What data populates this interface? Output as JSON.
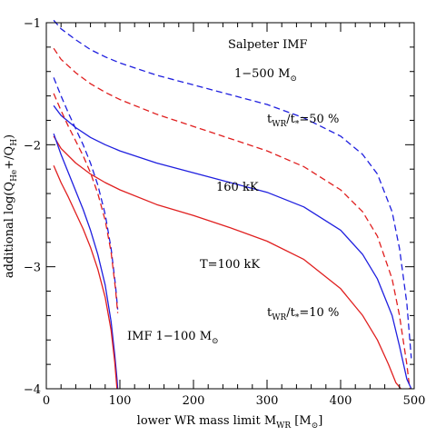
{
  "chart_data": {
    "type": "line",
    "xlabel": {
      "text": "lower WR mass limit M",
      "sub": "WR",
      "tail": " [M",
      "sym": "⊙",
      "close": "]"
    },
    "ylabel": {
      "a": "additional log(Q",
      "sub1": "He",
      "mid": "+/Q",
      "sub2": "H",
      "end": ")"
    },
    "xlim": [
      0,
      500
    ],
    "ylim": [
      -4,
      -1
    ],
    "xticks": [
      0,
      100,
      200,
      300,
      400,
      500
    ],
    "xtick_labels": [
      "0",
      "100",
      "200",
      "300",
      "400",
      "500"
    ],
    "yticks": [
      -4,
      -3,
      -2,
      -1
    ],
    "ytick_labels": [
      "−4",
      "−3",
      "−2",
      "−1"
    ],
    "colors": {
      "blue": "#1f1fdf",
      "red": "#e01f1f"
    },
    "annotations": {
      "salpeter": "Salpeter IMF",
      "range_prefix": "1−500 M",
      "frac50_t": "t",
      "frac50_sub1": "WR",
      "frac50_mid": "/t",
      "frac50_sub2": "*",
      "frac50_end": "=50 %",
      "frac10_end": "=10 %",
      "t160": "160 kK",
      "t100": "T=100 kK",
      "imf_small_prefix": "IMF 1−100 M",
      "sun": "⊙"
    },
    "series": [
      {
        "color": "blue",
        "dash": true,
        "x": [
          10,
          20,
          40,
          60,
          80,
          100,
          150,
          200,
          250,
          300,
          350,
          400,
          430,
          450,
          470,
          480,
          490,
          496
        ],
        "y": [
          -0.98,
          -1.05,
          -1.14,
          -1.22,
          -1.28,
          -1.33,
          -1.43,
          -1.51,
          -1.59,
          -1.67,
          -1.78,
          -1.93,
          -2.08,
          -2.24,
          -2.55,
          -2.85,
          -3.3,
          -3.75
        ]
      },
      {
        "color": "red",
        "dash": true,
        "x": [
          10,
          20,
          40,
          60,
          80,
          100,
          150,
          200,
          250,
          300,
          350,
          400,
          430,
          450,
          470,
          480,
          490,
          494
        ],
        "y": [
          -1.21,
          -1.3,
          -1.41,
          -1.5,
          -1.57,
          -1.63,
          -1.75,
          -1.85,
          -1.95,
          -2.05,
          -2.18,
          -2.37,
          -2.55,
          -2.75,
          -3.1,
          -3.4,
          -3.8,
          -4.0
        ]
      },
      {
        "color": "blue",
        "dash": false,
        "x": [
          10,
          20,
          40,
          60,
          80,
          100,
          150,
          200,
          250,
          300,
          350,
          400,
          430,
          450,
          470,
          480,
          490,
          496
        ],
        "y": [
          -1.68,
          -1.76,
          -1.86,
          -1.94,
          -2.0,
          -2.05,
          -2.15,
          -2.23,
          -2.31,
          -2.39,
          -2.51,
          -2.7,
          -2.9,
          -3.1,
          -3.4,
          -3.65,
          -3.92,
          -4.0
        ]
      },
      {
        "color": "red",
        "dash": false,
        "x": [
          10,
          20,
          40,
          60,
          80,
          100,
          150,
          200,
          250,
          300,
          350,
          400,
          430,
          450,
          465,
          475,
          482
        ],
        "y": [
          -1.93,
          -2.03,
          -2.15,
          -2.24,
          -2.31,
          -2.37,
          -2.49,
          -2.58,
          -2.68,
          -2.79,
          -2.94,
          -3.18,
          -3.4,
          -3.6,
          -3.8,
          -3.95,
          -4.0
        ]
      },
      {
        "color": "blue",
        "dash": true,
        "x": [
          10,
          20,
          30,
          40,
          50,
          60,
          70,
          80,
          88,
          94,
          97
        ],
        "y": [
          -1.45,
          -1.6,
          -1.74,
          -1.87,
          -2.0,
          -2.15,
          -2.33,
          -2.57,
          -2.85,
          -3.15,
          -3.35
        ]
      },
      {
        "color": "red",
        "dash": true,
        "x": [
          10,
          20,
          30,
          40,
          50,
          60,
          70,
          80,
          88,
          94,
          97
        ],
        "y": [
          -1.58,
          -1.72,
          -1.85,
          -1.97,
          -2.09,
          -2.23,
          -2.4,
          -2.62,
          -2.88,
          -3.18,
          -3.38
        ]
      },
      {
        "color": "blue",
        "dash": false,
        "x": [
          10,
          20,
          30,
          40,
          50,
          60,
          70,
          80,
          88,
          93,
          96,
          97
        ],
        "y": [
          -1.91,
          -2.08,
          -2.23,
          -2.38,
          -2.53,
          -2.7,
          -2.9,
          -3.15,
          -3.45,
          -3.72,
          -3.92,
          -4.0
        ]
      },
      {
        "color": "red",
        "dash": false,
        "x": [
          10,
          20,
          30,
          40,
          50,
          60,
          70,
          80,
          88,
          93,
          95,
          96
        ],
        "y": [
          -2.17,
          -2.31,
          -2.43,
          -2.56,
          -2.69,
          -2.84,
          -3.02,
          -3.25,
          -3.52,
          -3.78,
          -3.93,
          -4.0
        ]
      }
    ]
  }
}
